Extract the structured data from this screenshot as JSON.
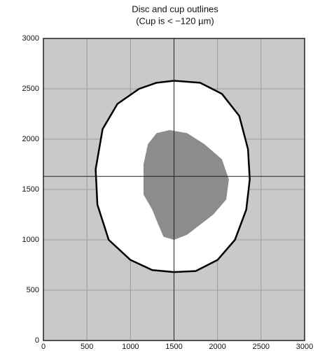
{
  "chart_data": {
    "type": "area",
    "title": "Disc and cup outlines",
    "subtitle": "(Cup is < −120 µm)",
    "xlim": [
      0,
      3000
    ],
    "xticks": [
      0,
      500,
      1000,
      1500,
      2000,
      2500,
      3000
    ],
    "ylim": [
      0,
      3000
    ],
    "yticks": [
      0,
      500,
      1000,
      1500,
      2000,
      2500,
      3000
    ],
    "grid": true,
    "center": {
      "x": 1500,
      "y": 1630
    },
    "series": [
      {
        "color": "#ffffff",
        "x": [
          1500,
          1800,
          2050,
          2250,
          2350,
          2370,
          2330,
          2200,
          2000,
          1750,
          1500,
          1250,
          1000,
          750,
          620,
          600,
          680,
          850,
          1100,
          1300
        ],
        "y": [
          2580,
          2560,
          2450,
          2230,
          1900,
          1600,
          1300,
          1000,
          800,
          690,
          680,
          700,
          800,
          1000,
          1350,
          1700,
          2100,
          2350,
          2500,
          2560
        ]
      },
      {
        "color": "#8c8c8c",
        "x": [
          1450,
          1650,
          1850,
          2050,
          2130,
          2100,
          1950,
          1800,
          1650,
          1500,
          1380,
          1320,
          1250,
          1150,
          1150,
          1200,
          1300
        ],
        "y": [
          2090,
          2060,
          1950,
          1800,
          1600,
          1400,
          1250,
          1150,
          1050,
          1000,
          1030,
          1150,
          1300,
          1450,
          1750,
          1950,
          2060
        ]
      }
    ]
  }
}
